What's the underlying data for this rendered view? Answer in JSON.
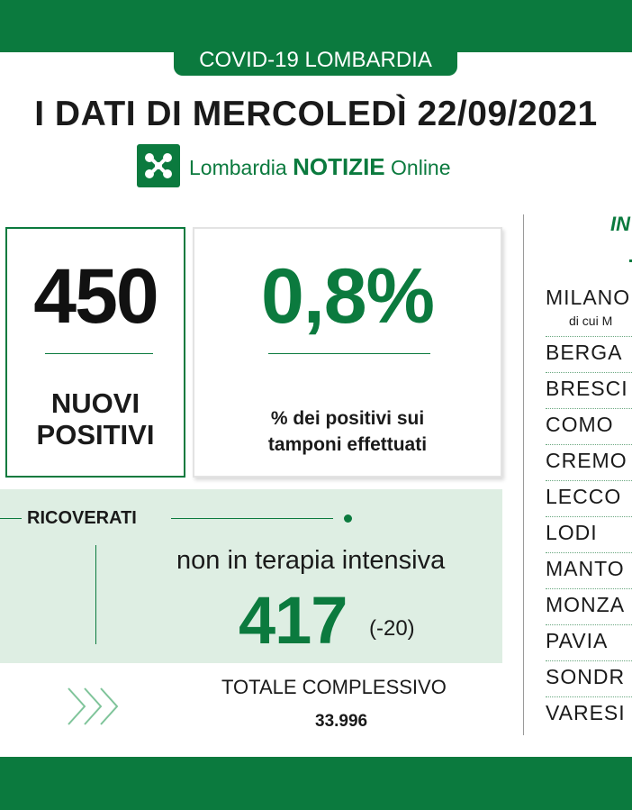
{
  "header": {
    "region": "COVID-19 LOMBARDIA",
    "title": "I DATI DI MERCOLEDÌ 22/09/2021"
  },
  "logo": {
    "icon": "lombardia-rose-icon",
    "text_pre": "Lombardia ",
    "text_bold": "NOTIZIE",
    "text_post": " Online"
  },
  "positivi": {
    "value": "450",
    "label_line1": "NUOVI",
    "label_line2": "POSITIVI"
  },
  "percentuale": {
    "value": "0,8%",
    "label_line1": "% dei positivi sui",
    "label_line2": "tamponi effettuati"
  },
  "ricoverati": {
    "title": "RICOVERATI",
    "label": "non in terapia intensiva",
    "value": "417",
    "delta": "(-20)"
  },
  "totale": {
    "label": "TOTALE COMPLESSIVO",
    "value": "33.996"
  },
  "province": {
    "heading": "IN",
    "items": [
      {
        "name": "MILANO",
        "sub": "di cui M"
      },
      {
        "name": "BERGA"
      },
      {
        "name": "BRESCI"
      },
      {
        "name": "COMO"
      },
      {
        "name": "CREMO"
      },
      {
        "name": "LECCO"
      },
      {
        "name": "LODI"
      },
      {
        "name": "MANTO"
      },
      {
        "name": "MONZA"
      },
      {
        "name": "PAVIA"
      },
      {
        "name": "SONDR"
      },
      {
        "name": "VARESI"
      }
    ]
  },
  "colors": {
    "brand_green": "#0b7a3e",
    "panel_green": "#deeee3"
  }
}
